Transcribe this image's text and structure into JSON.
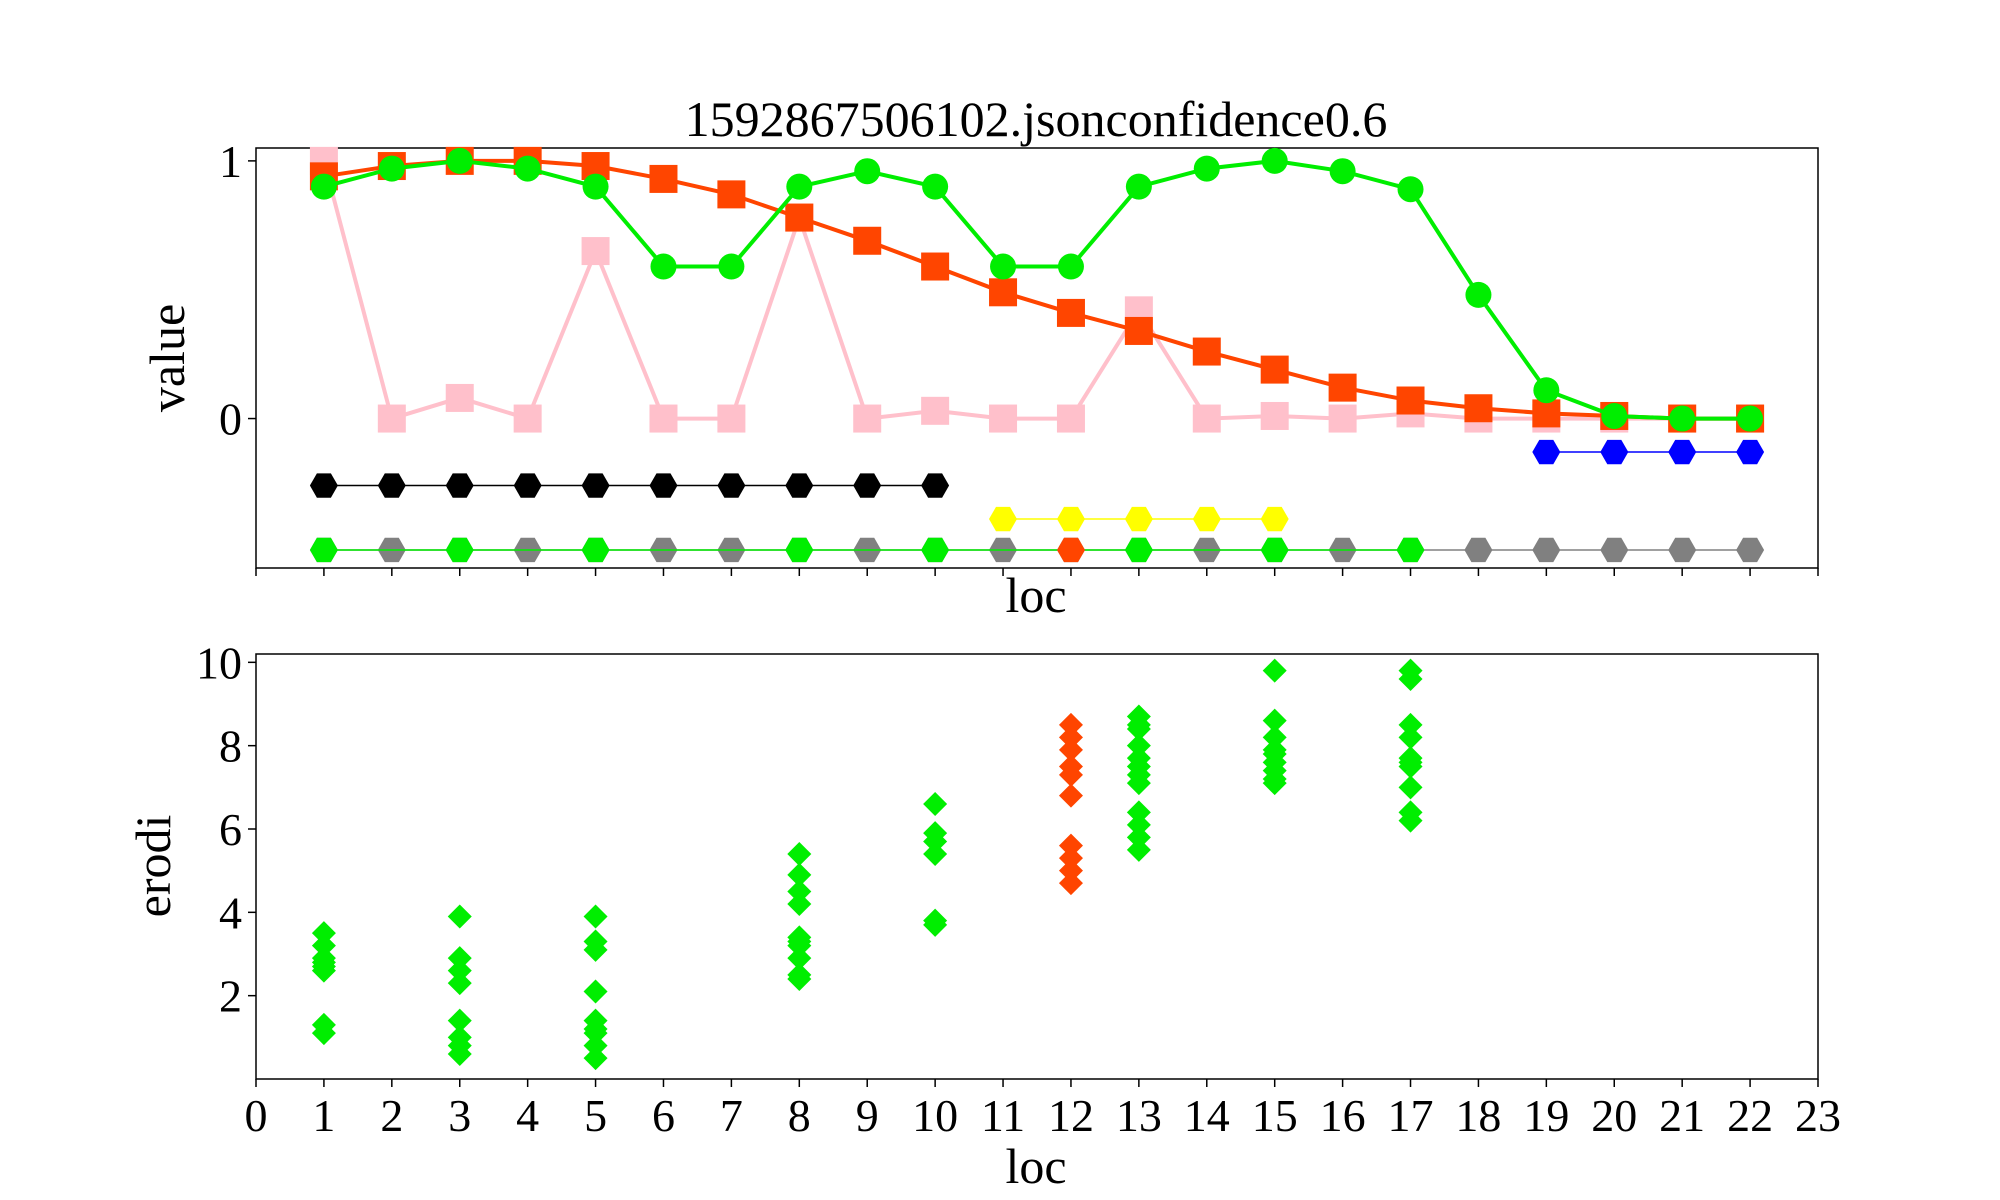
{
  "chart_data": [
    {
      "type": "line",
      "title": "1592867506102.jsonconfidence0.6",
      "xlabel": "loc",
      "ylabel": "value",
      "xlim": [
        0,
        23
      ],
      "ylim": [
        -0.58,
        1.05
      ],
      "yticks": [
        0,
        1
      ],
      "grid": false,
      "series": [
        {
          "color": "#ffc0cb",
          "marker": "square",
          "x": [
            1,
            2,
            3,
            4,
            5,
            6,
            7,
            8,
            9,
            10,
            11,
            12,
            13,
            14,
            15,
            16,
            17,
            18,
            19,
            20,
            21,
            22
          ],
          "y": [
            1.0,
            0.0,
            0.08,
            0.0,
            0.65,
            0.0,
            0.0,
            0.78,
            0.0,
            0.03,
            0.0,
            0.0,
            0.42,
            0.0,
            0.01,
            0.0,
            0.02,
            0.0,
            0.0,
            0.0,
            0.0,
            0.0
          ]
        },
        {
          "color": "#ff4500",
          "marker": "square",
          "x": [
            1,
            2,
            3,
            4,
            5,
            6,
            7,
            8,
            9,
            10,
            11,
            12,
            13,
            14,
            15,
            16,
            17,
            18,
            19,
            20,
            21,
            22
          ],
          "y": [
            0.94,
            0.98,
            1.0,
            1.0,
            0.98,
            0.93,
            0.87,
            0.78,
            0.69,
            0.59,
            0.49,
            0.41,
            0.34,
            0.26,
            0.19,
            0.12,
            0.07,
            0.04,
            0.02,
            0.01,
            0.0,
            0.0
          ]
        },
        {
          "color": "#00ee00",
          "marker": "circle",
          "x": [
            1,
            2,
            3,
            4,
            5,
            6,
            7,
            8,
            9,
            10,
            11,
            12,
            13,
            14,
            15,
            16,
            17,
            18,
            19,
            20,
            21,
            22
          ],
          "y": [
            0.9,
            0.97,
            1.0,
            0.97,
            0.9,
            0.59,
            0.59,
            0.9,
            0.96,
            0.9,
            0.59,
            0.59,
            0.9,
            0.97,
            1.0,
            0.96,
            0.89,
            0.48,
            0.11,
            0.01,
            0.0,
            0.0
          ]
        },
        {
          "color": "#000000",
          "marker": "hexagon",
          "x": [
            1,
            2,
            3,
            4,
            5,
            6,
            7,
            8,
            9,
            10
          ],
          "y": [
            -0.26,
            -0.26,
            -0.26,
            -0.26,
            -0.26,
            -0.26,
            -0.26,
            -0.26,
            -0.26,
            -0.26
          ]
        },
        {
          "color": "#ffff00",
          "marker": "hexagon",
          "x": [
            11,
            12,
            13,
            14,
            15
          ],
          "y": [
            -0.39,
            -0.39,
            -0.39,
            -0.39,
            -0.39
          ]
        },
        {
          "color": "#0000ff",
          "marker": "hexagon",
          "x": [
            19,
            20,
            21,
            22
          ],
          "y": [
            -0.13,
            -0.13,
            -0.13,
            -0.13
          ]
        },
        {
          "color": "#808080",
          "marker": "hexagon",
          "x": [
            1,
            2,
            3,
            4,
            5,
            6,
            7,
            8,
            9,
            10,
            11,
            12,
            13,
            14,
            15,
            16,
            17,
            18,
            19,
            20,
            21,
            22
          ],
          "y": [
            -0.51,
            -0.51,
            -0.51,
            -0.51,
            -0.51,
            -0.51,
            -0.51,
            -0.51,
            -0.51,
            -0.51,
            -0.51,
            -0.51,
            -0.51,
            -0.51,
            -0.51,
            -0.51,
            -0.51,
            -0.51,
            -0.51,
            -0.51,
            -0.51,
            -0.51
          ]
        },
        {
          "color": "#00ee00",
          "marker": "hexagon",
          "line": "#00ee00",
          "x": [
            1,
            3,
            5,
            8,
            10,
            13,
            15,
            17
          ],
          "y": [
            -0.51,
            -0.51,
            -0.51,
            -0.51,
            -0.51,
            -0.51,
            -0.51,
            -0.51
          ]
        },
        {
          "color": "#ff4500",
          "marker": "hexagon",
          "line": "none",
          "x": [
            12
          ],
          "y": [
            -0.51
          ]
        }
      ]
    },
    {
      "type": "scatter",
      "title": "",
      "xlabel": "loc",
      "ylabel": "erodi",
      "xlim": [
        0,
        23
      ],
      "ylim": [
        0,
        10.2
      ],
      "xticks": [
        0,
        1,
        2,
        3,
        4,
        5,
        6,
        7,
        8,
        9,
        10,
        11,
        12,
        13,
        14,
        15,
        16,
        17,
        18,
        19,
        20,
        21,
        22,
        23
      ],
      "yticks": [
        2,
        4,
        6,
        8,
        10
      ],
      "grid": false,
      "series": [
        {
          "color": "#00ee00",
          "marker": "diamond",
          "x": [
            1,
            1,
            1,
            1,
            1,
            1,
            1,
            1
          ],
          "y": [
            3.5,
            3.2,
            2.9,
            2.7,
            2.6,
            1.3,
            1.1,
            2.8
          ]
        },
        {
          "color": "#00ee00",
          "marker": "diamond",
          "x": [
            3,
            3,
            3,
            3,
            3,
            3,
            3,
            3
          ],
          "y": [
            3.9,
            2.9,
            2.6,
            2.3,
            1.4,
            1.0,
            0.8,
            0.6
          ]
        },
        {
          "color": "#00ee00",
          "marker": "diamond",
          "x": [
            5,
            5,
            5,
            5,
            5,
            5,
            5,
            5,
            5
          ],
          "y": [
            3.9,
            3.3,
            3.1,
            2.1,
            1.4,
            1.1,
            0.8,
            0.5,
            1.2
          ]
        },
        {
          "color": "#00ee00",
          "marker": "diamond",
          "x": [
            8,
            8,
            8,
            8,
            8,
            8,
            8,
            8,
            8,
            8
          ],
          "y": [
            5.4,
            4.9,
            4.5,
            4.2,
            3.4,
            3.2,
            2.9,
            2.5,
            2.4,
            3.3
          ]
        },
        {
          "color": "#00ee00",
          "marker": "diamond",
          "x": [
            10,
            10,
            10,
            10,
            10,
            10
          ],
          "y": [
            6.6,
            5.9,
            5.7,
            5.4,
            3.8,
            3.7
          ]
        },
        {
          "color": "#ff4500",
          "marker": "diamond",
          "x": [
            12,
            12,
            12,
            12,
            12,
            12,
            12,
            12,
            12,
            12
          ],
          "y": [
            8.5,
            8.2,
            7.9,
            7.5,
            7.3,
            6.8,
            5.6,
            5.3,
            5.0,
            4.7
          ]
        },
        {
          "color": "#00ee00",
          "marker": "diamond",
          "x": [
            13,
            13,
            13,
            13,
            13,
            13,
            13,
            13,
            13,
            13,
            13,
            13
          ],
          "y": [
            8.7,
            8.4,
            8.0,
            7.7,
            7.3,
            7.1,
            6.4,
            6.1,
            5.8,
            5.5,
            8.5,
            7.5
          ]
        },
        {
          "color": "#00ee00",
          "marker": "diamond",
          "x": [
            15,
            15,
            15,
            15,
            15,
            15,
            15,
            15,
            15
          ],
          "y": [
            9.8,
            8.6,
            8.2,
            7.9,
            7.6,
            7.4,
            7.2,
            7.1,
            7.8
          ]
        },
        {
          "color": "#00ee00",
          "marker": "diamond",
          "x": [
            17,
            17,
            17,
            17,
            17,
            17,
            17,
            17,
            17,
            17
          ],
          "y": [
            9.8,
            9.6,
            8.5,
            8.2,
            7.7,
            7.5,
            7.0,
            6.4,
            6.2,
            7.6
          ]
        }
      ]
    }
  ]
}
